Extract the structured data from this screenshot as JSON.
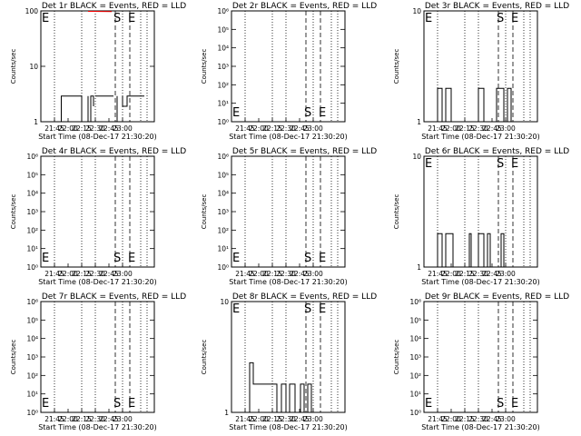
{
  "chart_data": [
    {
      "type": "line",
      "title": "Det 1r BLACK = Events, RED = LLD",
      "ylabel": "Counts/sec",
      "xlabel": "Start Time (08-Dec-17 21:30:20)",
      "scale": "log",
      "ylim": [
        1,
        100
      ],
      "yticks": [
        "1",
        "10",
        "100"
      ],
      "xticks": [
        "21:45",
        "22:00",
        "22:15",
        "22:30",
        "22:45",
        "23:00"
      ],
      "marker_S": "S",
      "marker_E": "E",
      "series": [
        {
          "color": "#000000",
          "segments": [
            [
              [
                22.5,
                1
              ],
              [
                22.5,
                2.9
              ],
              [
                45,
                2.9
              ],
              [
                45,
                1
              ]
            ],
            [
              [
                52,
                2.9
              ],
              [
                52,
                1
              ]
            ],
            [
              [
                55,
                1
              ],
              [
                55,
                2.9
              ],
              [
                58,
                2.9
              ],
              [
                58,
                1.9
              ]
            ],
            [
              [
                60,
                2.9
              ],
              [
                80,
                2.9
              ]
            ],
            [
              [
                84,
                2.9
              ],
              [
                84,
                1
              ]
            ],
            [
              [
                90,
                2.9
              ],
              [
                90,
                1.9
              ],
              [
                95,
                1.9
              ],
              [
                95,
                2.9
              ],
              [
                114,
                2.9
              ]
            ]
          ]
        },
        {
          "color": "#ff0000",
          "segments": [
            [
              [
                52,
                98
              ],
              [
                78,
                97
              ]
            ]
          ]
        }
      ]
    },
    {
      "type": "line",
      "title": "Det 2r BLACK = Events, RED = LLD",
      "ylabel": "Counts/sec",
      "xlabel": "Start Time (08-Dec-17 21:30:20)",
      "scale": "log",
      "ylim": [
        1,
        1000000
      ],
      "yticks": [
        "10⁰",
        "10¹",
        "10²",
        "10³",
        "10⁴",
        "10⁵",
        "10⁶"
      ],
      "xticks": [
        "21:45",
        "22:00",
        "22:15",
        "22:30",
        "22:45",
        "23:00"
      ],
      "marker_S": "S",
      "marker_E": "E",
      "series": []
    },
    {
      "type": "line",
      "title": "Det 3r BLACK = Events, RED = LLD",
      "ylabel": "Counts/sec",
      "xlabel": "Start Time (08-Dec-17 21:30:20)",
      "scale": "log",
      "ylim": [
        1,
        10
      ],
      "yticks": [
        "1",
        "10"
      ],
      "xticks": [
        "21:45",
        "22:00",
        "22:15",
        "22:30",
        "22:45",
        "23:00"
      ],
      "marker_S": "S",
      "marker_E": "E",
      "series": [
        {
          "color": "#000000",
          "segments": [
            [
              [
                15,
                1
              ],
              [
                15,
                2
              ],
              [
                20,
                2
              ],
              [
                20,
                1
              ],
              [
                24,
                1
              ],
              [
                24,
                2
              ],
              [
                30,
                2
              ],
              [
                30,
                1
              ]
            ],
            [
              [
                60,
                1
              ],
              [
                60,
                2
              ],
              [
                66,
                2
              ],
              [
                66,
                1
              ]
            ],
            [
              [
                80,
                1
              ],
              [
                80,
                2
              ],
              [
                88,
                2
              ],
              [
                88,
                1
              ],
              [
                92,
                1
              ],
              [
                92,
                2
              ],
              [
                96,
                2
              ],
              [
                96,
                1
              ]
            ]
          ]
        }
      ]
    },
    {
      "type": "line",
      "title": "Det 4r BLACK = Events, RED = LLD",
      "ylabel": "Counts/sec",
      "xlabel": "Start Time (08-Dec-17 21:30:20)",
      "scale": "log",
      "ylim": [
        1,
        1000000
      ],
      "yticks": [
        "10⁰",
        "10¹",
        "10²",
        "10³",
        "10⁴",
        "10⁵",
        "10⁶"
      ],
      "xticks": [
        "21:45",
        "22:00",
        "22:15",
        "22:30",
        "22:45",
        "23:00"
      ],
      "marker_S": "S",
      "marker_E": "E",
      "series": []
    },
    {
      "type": "line",
      "title": "Det 5r BLACK = Events, RED = LLD",
      "ylabel": "Counts/sec",
      "xlabel": "Start Time (08-Dec-17 21:30:20)",
      "scale": "log",
      "ylim": [
        1,
        1000000
      ],
      "yticks": [
        "10⁰",
        "10¹",
        "10²",
        "10³",
        "10⁴",
        "10⁵",
        "10⁶"
      ],
      "xticks": [
        "21:45",
        "22:00",
        "22:15",
        "22:30",
        "22:45",
        "23:00"
      ],
      "marker_S": "S",
      "marker_E": "E",
      "series": []
    },
    {
      "type": "line",
      "title": "Det 6r BLACK = Events, RED = LLD",
      "ylabel": "Counts/sec",
      "xlabel": "Start Time (08-Dec-17 21:30:20)",
      "scale": "log",
      "ylim": [
        1,
        10
      ],
      "yticks": [
        "1",
        "10"
      ],
      "xticks": [
        "21:45",
        "22:00",
        "22:15",
        "22:30",
        "22:45",
        "23:00"
      ],
      "marker_S": "S",
      "marker_E": "E",
      "series": [
        {
          "color": "#000000",
          "segments": [
            [
              [
                15,
                1
              ],
              [
                15,
                2
              ],
              [
                20,
                2
              ],
              [
                20,
                1
              ],
              [
                24,
                1
              ],
              [
                24,
                2
              ],
              [
                32,
                2
              ],
              [
                32,
                1
              ]
            ],
            [
              [
                50,
                1
              ],
              [
                50,
                2
              ],
              [
                52,
                2
              ],
              [
                52,
                1
              ]
            ],
            [
              [
                60,
                1
              ],
              [
                60,
                2
              ],
              [
                66,
                2
              ],
              [
                66,
                1
              ],
              [
                70,
                1
              ],
              [
                70,
                2
              ],
              [
                73,
                2
              ],
              [
                73,
                1
              ]
            ],
            [
              [
                85,
                1
              ],
              [
                85,
                2
              ],
              [
                88,
                2
              ],
              [
                88,
                1
              ]
            ]
          ]
        }
      ]
    },
    {
      "type": "line",
      "title": "Det 7r BLACK = Events, RED = LLD",
      "ylabel": "Counts/sec",
      "xlabel": "Start Time (08-Dec-17 21:30:20)",
      "scale": "log",
      "ylim": [
        1,
        1000000
      ],
      "yticks": [
        "10⁰",
        "10¹",
        "10²",
        "10³",
        "10⁴",
        "10⁵",
        "10⁶"
      ],
      "xticks": [
        "21:45",
        "22:00",
        "22:15",
        "22:30",
        "22:45",
        "23:00"
      ],
      "marker_S": "S",
      "marker_E": "E",
      "series": []
    },
    {
      "type": "line",
      "title": "Det 8r BLACK = Events, RED = LLD",
      "ylabel": "Counts/sec",
      "xlabel": "Start Time (08-Dec-17 21:30:20)",
      "scale": "log",
      "ylim": [
        1,
        10
      ],
      "yticks": [
        "1",
        "10"
      ],
      "xticks": [
        "21:45",
        "22:00",
        "22:15",
        "22:30",
        "22:45",
        "23:00"
      ],
      "marker_S": "S",
      "marker_E": "E",
      "series": [
        {
          "color": "#000000",
          "segments": [
            [
              [
                20,
                1
              ],
              [
                20,
                2.8
              ],
              [
                24,
                2.8
              ],
              [
                24,
                1.8
              ],
              [
                50,
                1.8
              ],
              [
                50,
                1
              ]
            ],
            [
              [
                55,
                1
              ],
              [
                55,
                1.8
              ],
              [
                60,
                1.8
              ],
              [
                60,
                1
              ],
              [
                64,
                1
              ],
              [
                64,
                1.8
              ],
              [
                70,
                1.8
              ],
              [
                70,
                1
              ]
            ],
            [
              [
                76,
                1
              ],
              [
                76,
                1.8
              ],
              [
                80,
                1.8
              ],
              [
                80,
                1
              ],
              [
                84,
                1
              ],
              [
                84,
                1.8
              ],
              [
                88,
                1.8
              ],
              [
                88,
                1
              ]
            ]
          ]
        }
      ]
    },
    {
      "type": "line",
      "title": "Det 9r BLACK = Events, RED = LLD",
      "ylabel": "Counts/sec",
      "xlabel": "Start Time (08-Dec-17 21:30:20)",
      "scale": "log",
      "ylim": [
        1,
        1000000
      ],
      "yticks": [
        "10⁰",
        "10¹",
        "10²",
        "10³",
        "10⁴",
        "10⁵",
        "10⁶"
      ],
      "xticks": [
        "21:45",
        "22:00",
        "22:15",
        "22:30",
        "22:45",
        "23:00"
      ],
      "marker_S": "S",
      "marker_E": "E",
      "series": []
    }
  ]
}
